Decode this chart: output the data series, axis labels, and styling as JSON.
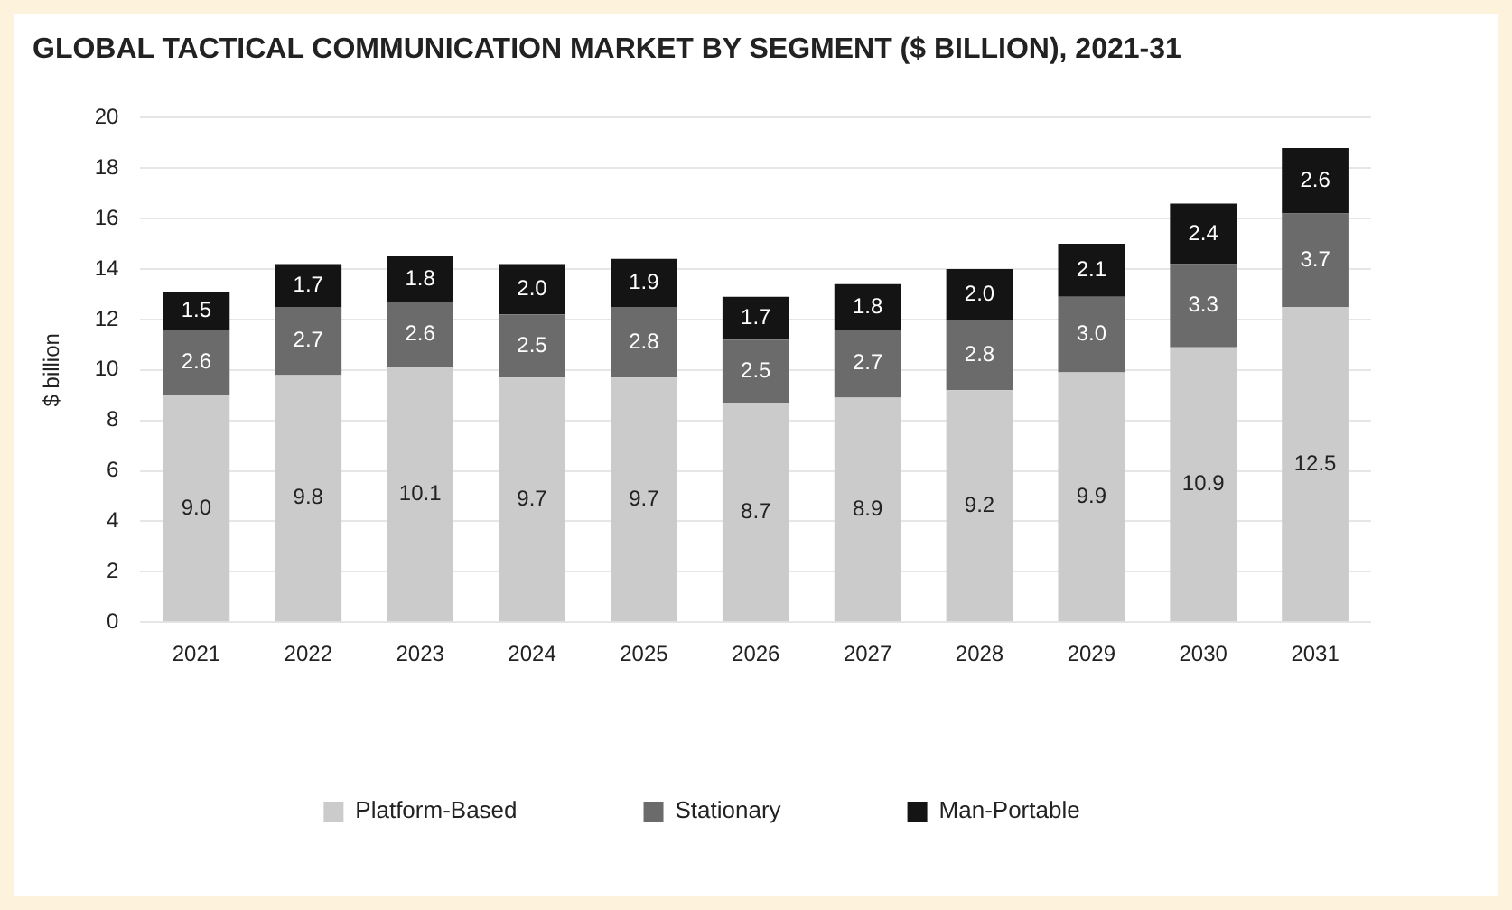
{
  "chart_data": {
    "type": "bar",
    "title": "GLOBAL TACTICAL COMMUNICATION MARKET BY SEGMENT ($ BILLION), 2021-31",
    "ylabel": "$ billion",
    "categories": [
      "2021",
      "2022",
      "2023",
      "2024",
      "2025",
      "2026",
      "2027",
      "2028",
      "2029",
      "2030",
      "2031"
    ],
    "stacked": true,
    "legend": "bottom",
    "grid": "y",
    "ylim": [
      0,
      20
    ],
    "yticks": [
      0,
      2,
      4,
      6,
      8,
      10,
      12,
      14,
      16,
      18,
      20
    ],
    "series": [
      {
        "name": "Platform-Based",
        "color": "#cbcbcb",
        "values": [
          9.0,
          9.8,
          10.1,
          9.7,
          9.7,
          8.7,
          8.9,
          9.2,
          9.9,
          10.9,
          12.5
        ],
        "value_labels": [
          "9.0",
          "9.8",
          "10.1",
          "9.7",
          "9.7",
          "8.7",
          "8.9",
          "9.2",
          "9.9",
          "10.9",
          "12.5"
        ]
      },
      {
        "name": "Stationary",
        "color": "#6b6b6b",
        "values": [
          2.6,
          2.7,
          2.6,
          2.5,
          2.8,
          2.5,
          2.7,
          2.8,
          3.0,
          3.3,
          3.7
        ],
        "value_labels": [
          "2.6",
          "2.7",
          "2.6",
          "2.5",
          "2.8",
          "2.5",
          "2.7",
          "2.8",
          "3.0",
          "3.3",
          "3.7"
        ]
      },
      {
        "name": "Man-Portable",
        "color": "#141414",
        "values": [
          1.5,
          1.7,
          1.8,
          2.0,
          1.9,
          1.7,
          1.8,
          2.0,
          2.1,
          2.4,
          2.6
        ],
        "value_labels": [
          "1.5",
          "1.7",
          "1.8",
          "2.0",
          "1.9",
          "1.7",
          "1.8",
          "2.0",
          "2.1",
          "2.4",
          "2.6"
        ]
      }
    ]
  }
}
